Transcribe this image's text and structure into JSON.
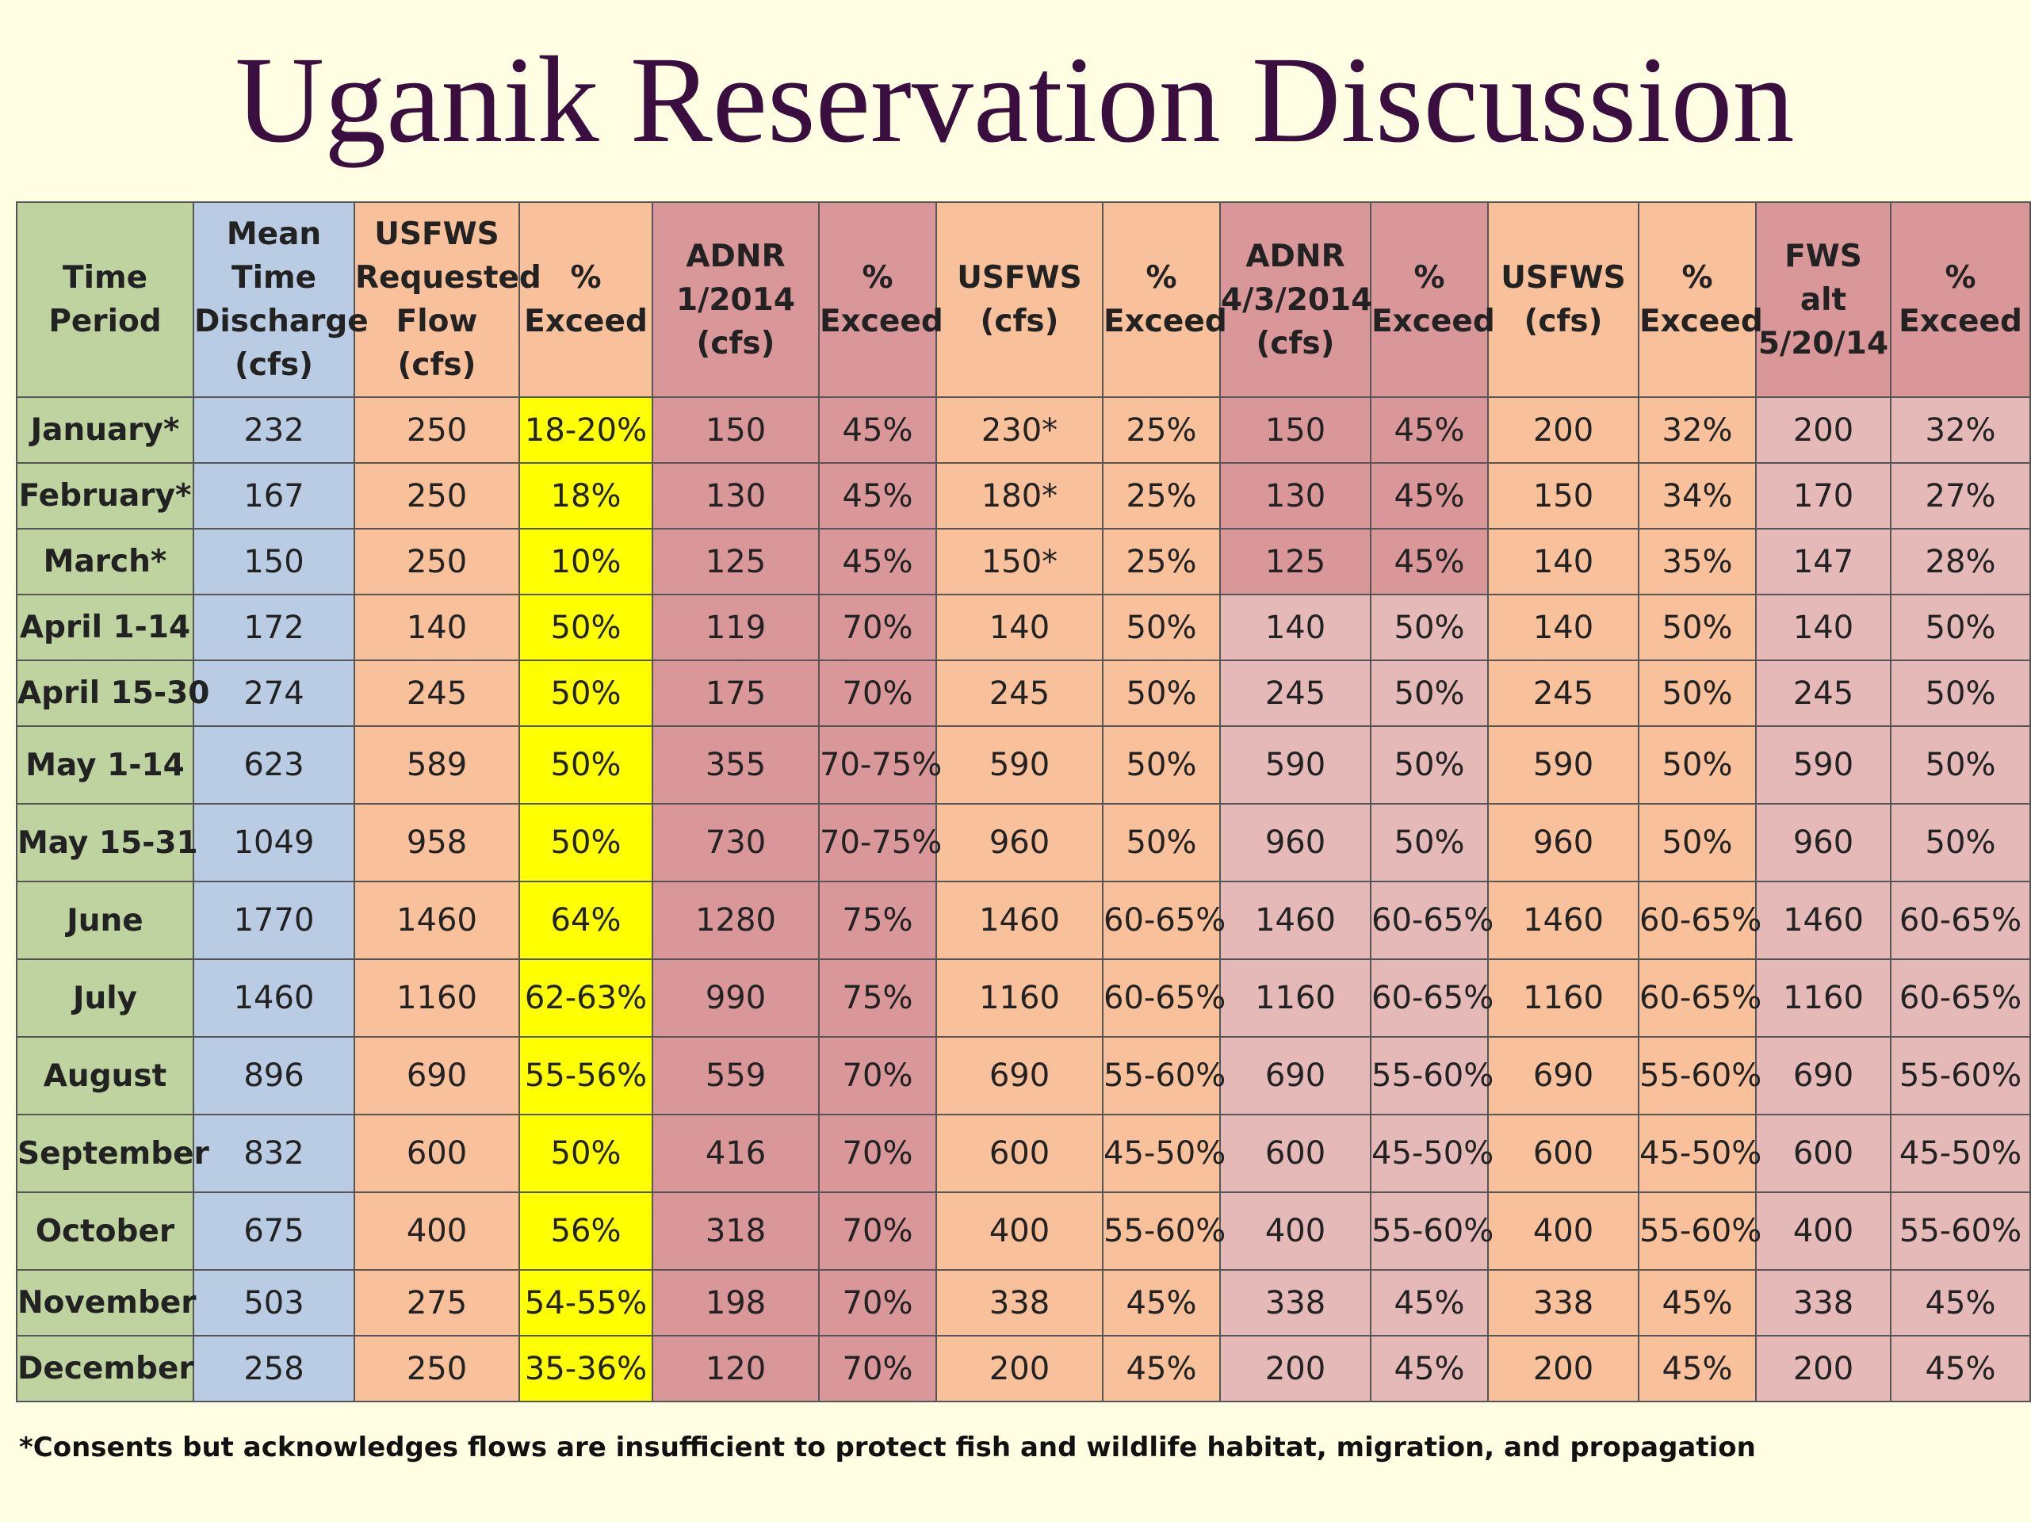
{
  "title": "Uganik Reservation Discussion",
  "headers": [
    "Time Period",
    "Mean Time Discharge (cfs)",
    "USFWS Requested Flow (cfs)",
    "% Exceed",
    "ADNR 1/2014 (cfs)",
    "% Exceed",
    "USFWS (cfs)",
    "% Exceed",
    "ADNR 4/3/2014 (cfs)",
    "% Exceed",
    "USFWS (cfs)",
    "% Exceed",
    "FWS alt 5/20/14",
    "% Exceed"
  ],
  "rows": [
    [
      "January*",
      "232",
      "250",
      "18-20%",
      "150",
      "45%",
      "230*",
      "25%",
      "150",
      "45%",
      "200",
      "32%",
      "200",
      "32%"
    ],
    [
      "February*",
      "167",
      "250",
      "18%",
      "130",
      "45%",
      "180*",
      "25%",
      "130",
      "45%",
      "150",
      "34%",
      "170",
      "27%"
    ],
    [
      "March*",
      "150",
      "250",
      "10%",
      "125",
      "45%",
      "150*",
      "25%",
      "125",
      "45%",
      "140",
      "35%",
      "147",
      "28%"
    ],
    [
      "April 1-14",
      "172",
      "140",
      "50%",
      "119",
      "70%",
      "140",
      "50%",
      "140",
      "50%",
      "140",
      "50%",
      "140",
      "50%"
    ],
    [
      "April 15-30",
      "274",
      "245",
      "50%",
      "175",
      "70%",
      "245",
      "50%",
      "245",
      "50%",
      "245",
      "50%",
      "245",
      "50%"
    ],
    [
      "May 1-14",
      "623",
      "589",
      "50%",
      "355",
      "70-75%",
      "590",
      "50%",
      "590",
      "50%",
      "590",
      "50%",
      "590",
      "50%"
    ],
    [
      "May 15-31",
      "1049",
      "958",
      "50%",
      "730",
      "70-75%",
      "960",
      "50%",
      "960",
      "50%",
      "960",
      "50%",
      "960",
      "50%"
    ],
    [
      "June",
      "1770",
      "1460",
      "64%",
      "1280",
      "75%",
      "1460",
      "60-65%",
      "1460",
      "60-65%",
      "1460",
      "60-65%",
      "1460",
      "60-65%"
    ],
    [
      "July",
      "1460",
      "1160",
      "62-63%",
      "990",
      "75%",
      "1160",
      "60-65%",
      "1160",
      "60-65%",
      "1160",
      "60-65%",
      "1160",
      "60-65%"
    ],
    [
      "August",
      "896",
      "690",
      "55-56%",
      "559",
      "70%",
      "690",
      "55-60%",
      "690",
      "55-60%",
      "690",
      "55-60%",
      "690",
      "55-60%"
    ],
    [
      "September",
      "832",
      "600",
      "50%",
      "416",
      "70%",
      "600",
      "45-50%",
      "600",
      "45-50%",
      "600",
      "45-50%",
      "600",
      "45-50%"
    ],
    [
      "October",
      "675",
      "400",
      "56%",
      "318",
      "70%",
      "400",
      "55-60%",
      "400",
      "55-60%",
      "400",
      "55-60%",
      "400",
      "55-60%"
    ],
    [
      "November",
      "503",
      "275",
      "54-55%",
      "198",
      "70%",
      "338",
      "45%",
      "338",
      "45%",
      "338",
      "45%",
      "338",
      "45%"
    ],
    [
      "December",
      "258",
      "250",
      "35-36%",
      "120",
      "70%",
      "200",
      "45%",
      "200",
      "45%",
      "200",
      "45%",
      "200",
      "45%"
    ]
  ],
  "footnote": "*Consents but acknowledges flows are insufficient to protect fish and wildlife habitat, migration, and propagation",
  "colors": {
    "background": "#fffde2",
    "title": "#3a0f3f",
    "time_period": "#bed3a0",
    "mean_discharge": "#b9cce4",
    "usfws": "#f8c09b",
    "highlight_exceed": "#ffff00",
    "adnr": "#d9979a",
    "adnr_light": "#e6b9b9"
  }
}
